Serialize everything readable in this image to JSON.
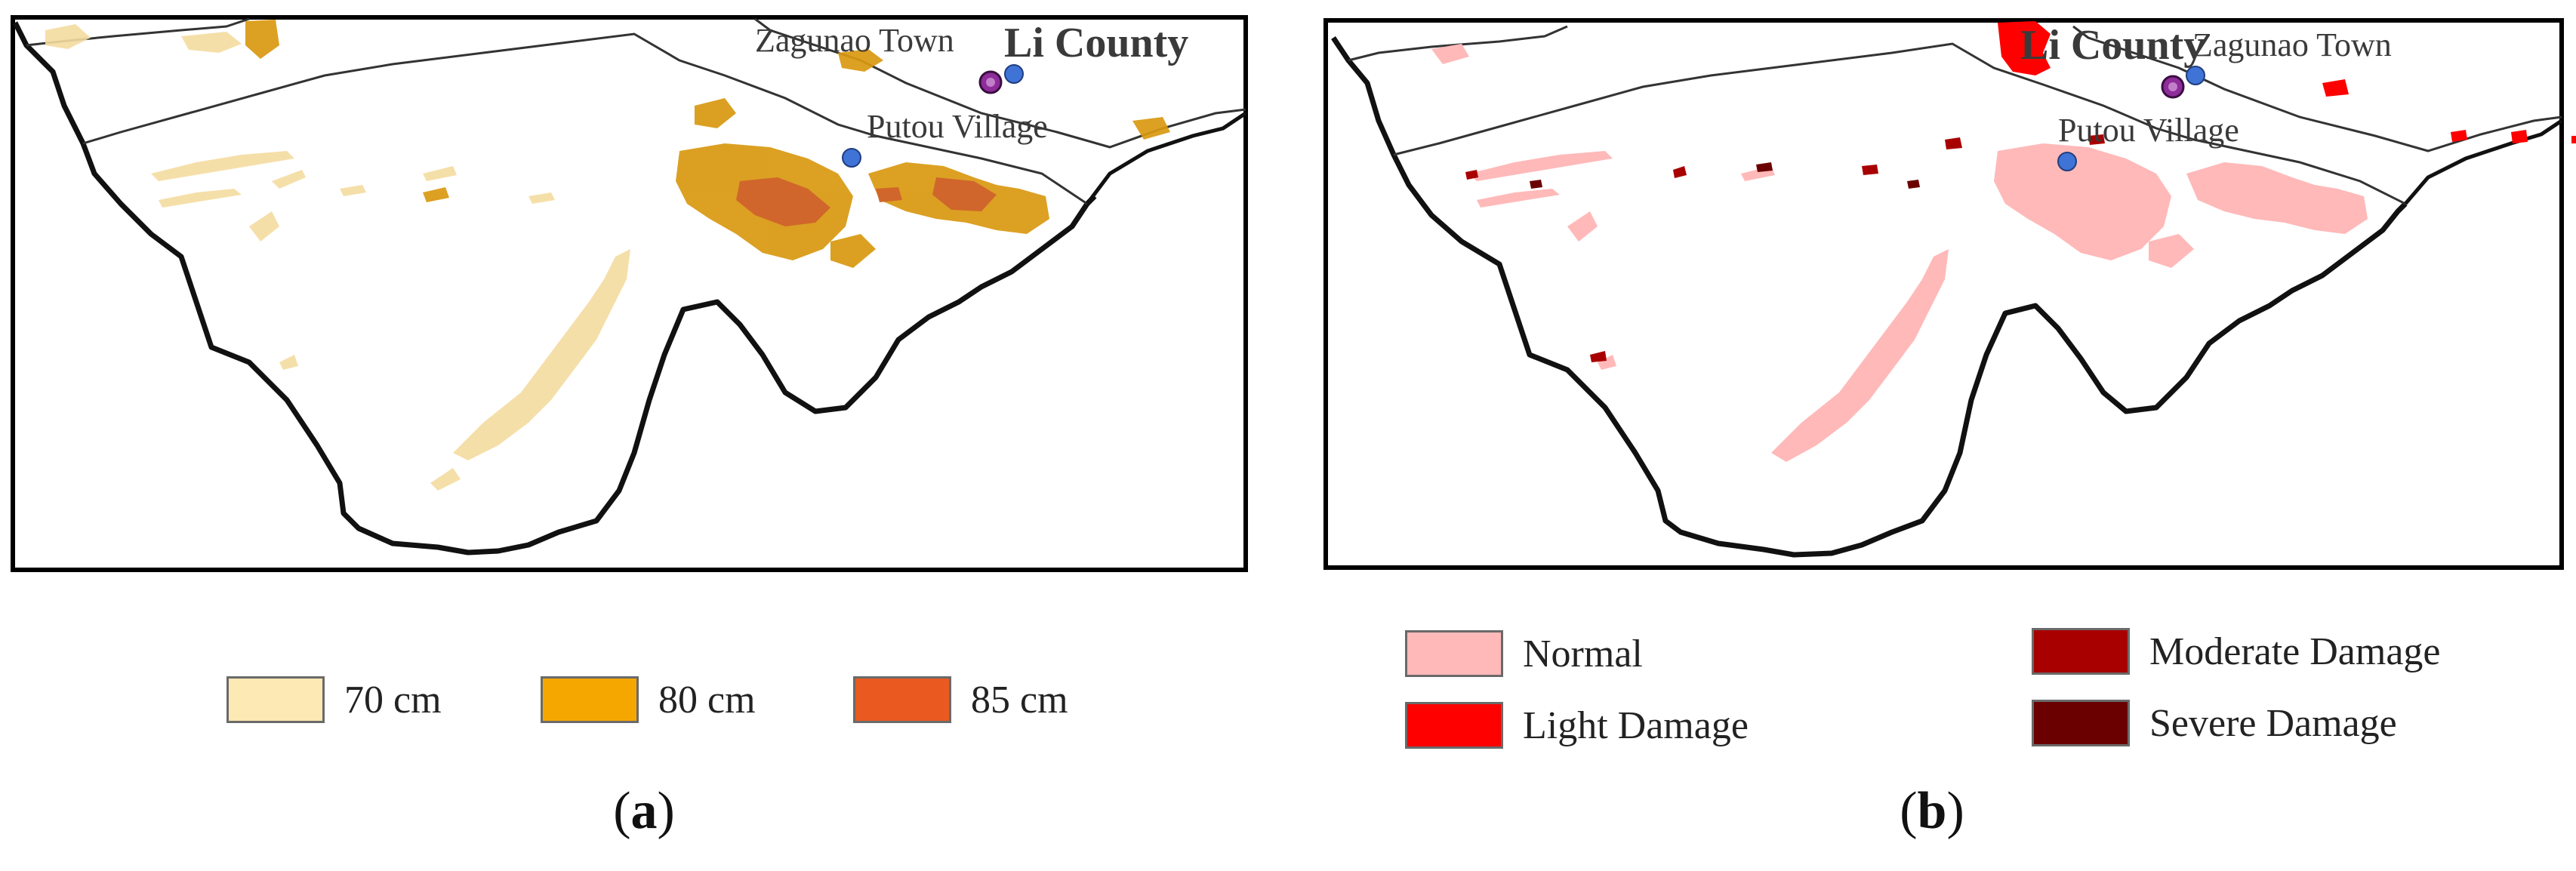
{
  "panels": [
    {
      "id": "a",
      "caption_letter": "a",
      "places": {
        "zagunao": "Zagunao Town",
        "li_county": "Li County",
        "putou": "Putou Village"
      },
      "legend": [
        {
          "label": "70 cm",
          "color": "#fde9b3"
        },
        {
          "label": "80 cm",
          "color": "#f5a700"
        },
        {
          "label": "85 cm",
          "color": "#ea5a20"
        }
      ]
    },
    {
      "id": "b",
      "caption_letter": "b",
      "places": {
        "li_county": "Li County",
        "zagunao": "Zagunao Town",
        "putou": "Putou Village"
      },
      "legend": [
        {
          "label": "Normal",
          "color": "#ffb9b9"
        },
        {
          "label": "Moderate Damage",
          "color": "#a80000"
        },
        {
          "label": "Light Damage",
          "color": "#ff0000"
        },
        {
          "label": "Severe Damage",
          "color": "#6b0000"
        }
      ]
    }
  ],
  "colors": {
    "map_frame": "#000000",
    "boundary": "#111111",
    "inner_boundary": "#333333",
    "town_marker": "#8e2c9a",
    "village_marker": "#3f73d6",
    "deposit_70": "#f4dca0",
    "deposit_80": "#d99810",
    "deposit_85": "#d0632d",
    "normal": "#ffb9b9",
    "light_damage": "#ff0000",
    "moderate_damage": "#a80000",
    "severe_damage": "#6b0000"
  }
}
